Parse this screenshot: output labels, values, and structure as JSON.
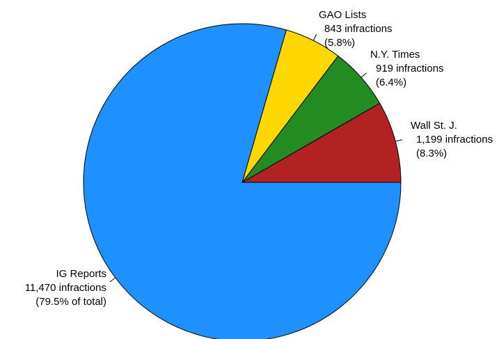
{
  "chart_data": {
    "type": "pie",
    "title": "",
    "slices": [
      {
        "name": "Wall St. J.",
        "value": 1199,
        "count_label": "1,199 infractions",
        "percent_label": "(8.3%)",
        "color": "#B22222"
      },
      {
        "name": "N.Y. Times",
        "value": 919,
        "count_label": "919 infractions",
        "percent_label": "(6.4%)",
        "color": "#228B22"
      },
      {
        "name": "GAO Lists",
        "value": 843,
        "count_label": "843 infractions",
        "percent_label": "(5.8%)",
        "color": "#FFD700"
      },
      {
        "name": "IG Reports",
        "value": 11470,
        "count_label": "11,470 infractions",
        "percent_label": "(79.5% of total)",
        "color": "#1E90FF"
      }
    ],
    "start_angle": "3 o'clock",
    "direction": "counter-clockwise",
    "legend": "none",
    "slice_border_color": "#000000"
  }
}
